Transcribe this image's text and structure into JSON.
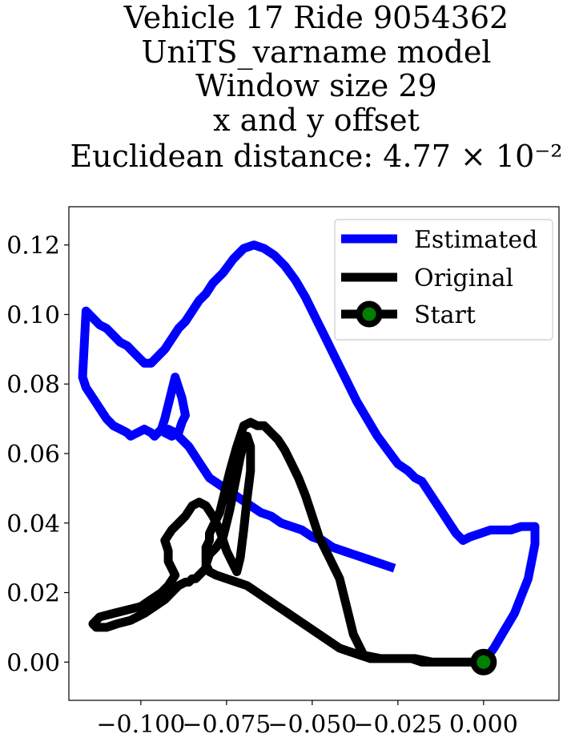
{
  "chart_data": {
    "type": "line",
    "title_lines": [
      "Vehicle 17 Ride 9054362",
      "UniTS_varname model",
      "Window size 29",
      "x and y offset",
      "Euclidean distance: 4.77 × 10⁻²"
    ],
    "xlabel": "",
    "ylabel": "",
    "xlim": [
      -0.121,
      0.022
    ],
    "ylim": [
      -0.011,
      0.131
    ],
    "x_ticks": [
      -0.1,
      -0.075,
      -0.05,
      -0.025,
      0.0
    ],
    "x_tick_labels": [
      "−0.100",
      "−0.075",
      "−0.050",
      "−0.025",
      "0.000"
    ],
    "y_ticks": [
      0.0,
      0.02,
      0.04,
      0.06,
      0.08,
      0.1,
      0.12
    ],
    "y_tick_labels": [
      "0.00",
      "0.02",
      "0.04",
      "0.06",
      "0.08",
      "0.10",
      "0.12"
    ],
    "grid": false,
    "legend_position": "top-right",
    "series": [
      {
        "name": "Estimated",
        "color": "#0000ff",
        "x": [
          0.0,
          0.003,
          0.006,
          0.009,
          0.011,
          0.013,
          0.014,
          0.015,
          0.015,
          0.015,
          0.014,
          0.013,
          0.011,
          0.008,
          0.005,
          0.002,
          -0.001,
          -0.004,
          -0.006,
          -0.008,
          -0.01,
          -0.012,
          -0.014,
          -0.016,
          -0.018,
          -0.02,
          -0.022,
          -0.025,
          -0.028,
          -0.031,
          -0.034,
          -0.037,
          -0.04,
          -0.043,
          -0.046,
          -0.049,
          -0.052,
          -0.055,
          -0.058,
          -0.061,
          -0.064,
          -0.067,
          -0.07,
          -0.073,
          -0.076,
          -0.079,
          -0.081,
          -0.083,
          -0.085,
          -0.087,
          -0.089,
          -0.091,
          -0.093,
          -0.095,
          -0.097,
          -0.099,
          -0.1,
          -0.102,
          -0.104,
          -0.106,
          -0.108,
          -0.11,
          -0.112,
          -0.114,
          -0.115,
          -0.116,
          -0.117,
          -0.116,
          -0.114,
          -0.112,
          -0.11,
          -0.108,
          -0.106,
          -0.104,
          -0.103,
          -0.101,
          -0.099,
          -0.097,
          -0.096,
          -0.095,
          -0.094,
          -0.093,
          -0.092,
          -0.091,
          -0.09,
          -0.088,
          -0.087,
          -0.088,
          -0.089,
          -0.091,
          -0.093,
          -0.092,
          -0.09,
          -0.088,
          -0.086,
          -0.084,
          -0.082,
          -0.08,
          -0.077,
          -0.074,
          -0.071,
          -0.068,
          -0.065,
          -0.062,
          -0.059,
          -0.056,
          -0.053,
          -0.05,
          -0.047,
          -0.044,
          -0.041,
          -0.038,
          -0.035,
          -0.032,
          -0.029,
          -0.026
        ],
        "y": [
          0.0,
          0.004,
          0.009,
          0.014,
          0.019,
          0.024,
          0.029,
          0.034,
          0.037,
          0.039,
          0.039,
          0.039,
          0.039,
          0.038,
          0.038,
          0.038,
          0.037,
          0.036,
          0.035,
          0.037,
          0.04,
          0.043,
          0.046,
          0.049,
          0.052,
          0.053,
          0.055,
          0.057,
          0.061,
          0.065,
          0.07,
          0.075,
          0.081,
          0.087,
          0.093,
          0.099,
          0.105,
          0.11,
          0.114,
          0.117,
          0.119,
          0.12,
          0.119,
          0.116,
          0.112,
          0.109,
          0.106,
          0.104,
          0.101,
          0.098,
          0.096,
          0.093,
          0.09,
          0.088,
          0.086,
          0.086,
          0.087,
          0.089,
          0.091,
          0.092,
          0.094,
          0.096,
          0.097,
          0.099,
          0.1,
          0.101,
          0.082,
          0.079,
          0.076,
          0.073,
          0.07,
          0.068,
          0.067,
          0.066,
          0.065,
          0.066,
          0.067,
          0.066,
          0.065,
          0.066,
          0.067,
          0.07,
          0.074,
          0.078,
          0.082,
          0.076,
          0.071,
          0.069,
          0.066,
          0.065,
          0.066,
          0.067,
          0.066,
          0.064,
          0.062,
          0.059,
          0.056,
          0.053,
          0.051,
          0.049,
          0.047,
          0.045,
          0.043,
          0.042,
          0.04,
          0.039,
          0.038,
          0.036,
          0.035,
          0.033,
          0.032,
          0.031,
          0.03,
          0.029,
          0.028,
          0.027
        ]
      },
      {
        "name": "Original",
        "color": "#000000",
        "x": [
          0.0,
          -0.005,
          -0.01,
          -0.015,
          -0.02,
          -0.025,
          -0.03,
          -0.035,
          -0.038,
          -0.04,
          -0.042,
          -0.045,
          -0.048,
          -0.05,
          -0.052,
          -0.054,
          -0.056,
          -0.058,
          -0.06,
          -0.062,
          -0.064,
          -0.066,
          -0.068,
          -0.07,
          -0.072,
          -0.074,
          -0.076,
          -0.077,
          -0.078,
          -0.079,
          -0.08,
          -0.08,
          -0.081,
          -0.081,
          -0.081,
          -0.081,
          -0.082,
          -0.083,
          -0.084,
          -0.085,
          -0.086,
          -0.087,
          -0.089,
          -0.091,
          -0.093,
          -0.096,
          -0.099,
          -0.103,
          -0.107,
          -0.11,
          -0.113,
          -0.114,
          -0.112,
          -0.108,
          -0.104,
          -0.1,
          -0.097,
          -0.094,
          -0.092,
          -0.09,
          -0.092,
          -0.092,
          -0.093,
          -0.091,
          -0.089,
          -0.087,
          -0.085,
          -0.083,
          -0.081,
          -0.079,
          -0.077,
          -0.076,
          -0.075,
          -0.074,
          -0.073,
          -0.072,
          -0.071,
          -0.07,
          -0.069,
          -0.068,
          -0.068,
          -0.069,
          -0.07,
          -0.071,
          -0.072,
          -0.073,
          -0.074,
          -0.075,
          -0.076,
          -0.078,
          -0.08,
          -0.081,
          -0.08,
          -0.078,
          -0.075,
          -0.072,
          -0.069,
          -0.066,
          -0.063,
          -0.06,
          -0.057,
          -0.054,
          -0.051,
          -0.048,
          -0.045,
          -0.042,
          -0.039,
          -0.036,
          -0.033,
          -0.03,
          -0.027,
          -0.024,
          -0.021,
          -0.018,
          -0.015,
          -0.012,
          -0.009,
          -0.006,
          -0.003,
          0.0
        ],
        "y": [
          0.0,
          0.0,
          0.0,
          0.0,
          0.001,
          0.001,
          0.001,
          0.002,
          0.008,
          0.016,
          0.024,
          0.03,
          0.036,
          0.042,
          0.048,
          0.053,
          0.057,
          0.061,
          0.064,
          0.066,
          0.068,
          0.068,
          0.069,
          0.068,
          0.062,
          0.055,
          0.047,
          0.043,
          0.041,
          0.039,
          0.037,
          0.035,
          0.033,
          0.031,
          0.029,
          0.027,
          0.026,
          0.025,
          0.024,
          0.024,
          0.023,
          0.023,
          0.022,
          0.02,
          0.018,
          0.016,
          0.014,
          0.012,
          0.011,
          0.01,
          0.01,
          0.011,
          0.013,
          0.014,
          0.015,
          0.016,
          0.018,
          0.02,
          0.022,
          0.025,
          0.029,
          0.032,
          0.035,
          0.038,
          0.04,
          0.042,
          0.045,
          0.046,
          0.045,
          0.042,
          0.038,
          0.035,
          0.032,
          0.03,
          0.028,
          0.026,
          0.03,
          0.038,
          0.047,
          0.055,
          0.062,
          0.065,
          0.063,
          0.059,
          0.054,
          0.049,
          0.044,
          0.04,
          0.036,
          0.033,
          0.031,
          0.028,
          0.026,
          0.025,
          0.024,
          0.023,
          0.022,
          0.02,
          0.018,
          0.016,
          0.014,
          0.012,
          0.01,
          0.008,
          0.006,
          0.004,
          0.003,
          0.002,
          0.001,
          0.001,
          0.001,
          0.001,
          0.001,
          0.0,
          0.0,
          0.0,
          0.0,
          0.0,
          0.0,
          0.0
        ]
      },
      {
        "name": "Start",
        "color": "#000000",
        "marker_face_color": "#008000",
        "x": [
          0.0
        ],
        "y": [
          0.0
        ]
      }
    ]
  }
}
